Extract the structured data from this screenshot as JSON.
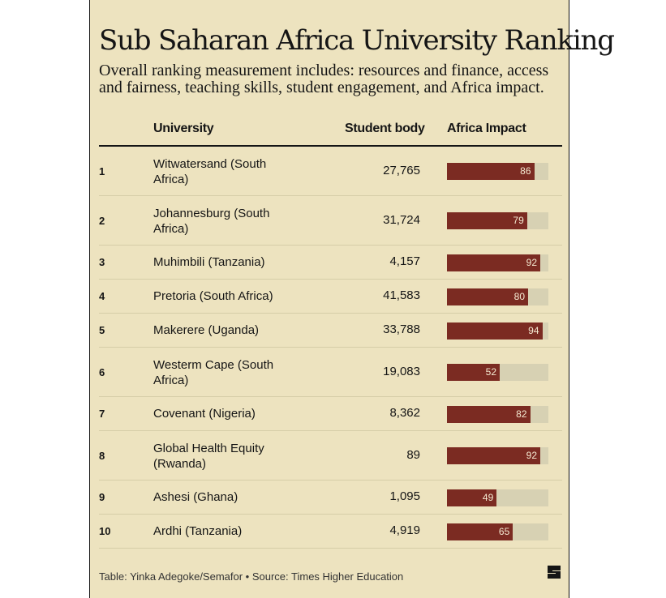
{
  "title": "Sub Saharan Africa University Ranking",
  "subtitle": "Overall ranking measurement includes: resources and finance, access and fairness, teaching skills, student engagement, and Africa impact.",
  "headers": {
    "university": "University",
    "students": "Student body",
    "impact": "Africa Impact"
  },
  "footer": "Table: Yinka Adegoke/Semafor • Source: Times Higher Education",
  "colors": {
    "background": "#ede3bf",
    "bar": "#7b2b22",
    "track": "#d7d1b3"
  },
  "chart_data": {
    "type": "table",
    "columns": [
      "",
      "University",
      "Student body",
      "Africa Impact"
    ],
    "impact_range": [
      0,
      100
    ],
    "rows": [
      {
        "rank": "1",
        "university": "Witwatersand (South Africa)",
        "students": "27,765",
        "impact": 86
      },
      {
        "rank": "2",
        "university": "Johannesburg (South Africa)",
        "students": "31,724",
        "impact": 79
      },
      {
        "rank": "3",
        "university": "Muhimbili (Tanzania)",
        "students": "4,157",
        "impact": 92
      },
      {
        "rank": "4",
        "university": "Pretoria (South Africa)",
        "students": "41,583",
        "impact": 80
      },
      {
        "rank": "5",
        "university": "Makerere (Uganda)",
        "students": "33,788",
        "impact": 94
      },
      {
        "rank": "6",
        "university": "Westerm Cape (South Africa)",
        "students": "19,083",
        "impact": 52
      },
      {
        "rank": "7",
        "university": "Covenant (Nigeria)",
        "students": "8,362",
        "impact": 82
      },
      {
        "rank": "8",
        "university": "Global Health Equity (Rwanda)",
        "students": "89",
        "impact": 92
      },
      {
        "rank": "9",
        "university": "Ashesi (Ghana)",
        "students": "1,095",
        "impact": 49
      },
      {
        "rank": "10",
        "university": "Ardhi (Tanzania)",
        "students": "4,919",
        "impact": 65
      }
    ]
  }
}
